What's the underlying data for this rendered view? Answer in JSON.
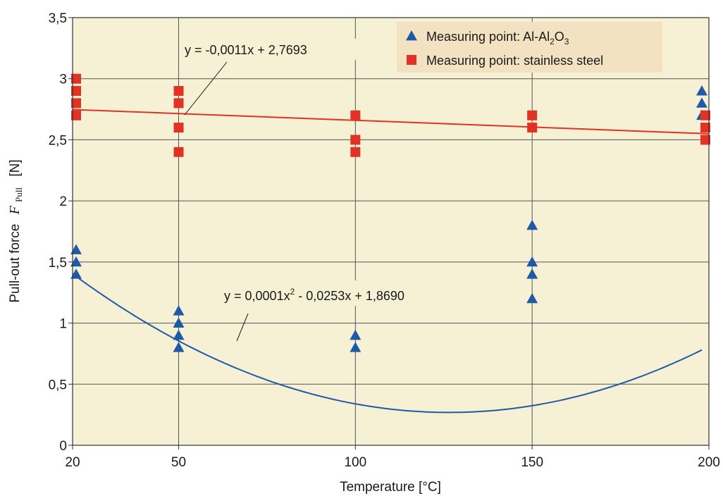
{
  "chart_data": {
    "type": "scatter",
    "title": "",
    "xlabel": "Temperature [°C]",
    "ylabel_text": "Pull-out force",
    "ylabel_symbol": "F",
    "ylabel_symbol_sub": "Pull",
    "ylabel_unit": "[N]",
    "xlim": [
      20,
      200
    ],
    "ylim": [
      0,
      3.5
    ],
    "grid": true,
    "legend_position": "top-right",
    "xticks": [
      20,
      50,
      100,
      150,
      200
    ],
    "yticks": [
      0,
      0.5,
      1,
      1.5,
      2,
      2.5,
      3,
      3.5
    ],
    "xtick_labels": [
      "20",
      "50",
      "100",
      "150",
      "200"
    ],
    "ytick_labels": [
      "0",
      "0,5",
      "1",
      "1,5",
      "2",
      "2,5",
      "3",
      "3,5"
    ],
    "colors": {
      "plot_background": "#f6f0d4",
      "grid": "#555555",
      "triangle_series": "#1f5aa6",
      "square_series": "#e03326",
      "legend_background": "#f2e2c2"
    },
    "series": [
      {
        "legend_prefix": "Measuring point: Al-Al",
        "legend_sub1": "2",
        "legend_mid": "O",
        "legend_sub2": "3",
        "marker": "triangle",
        "color": "#1f5aa6",
        "points": [
          [
            21,
            1.4
          ],
          [
            21,
            1.5
          ],
          [
            21,
            1.6
          ],
          [
            50,
            0.8
          ],
          [
            50,
            0.9
          ],
          [
            50,
            1.0
          ],
          [
            50,
            1.1
          ],
          [
            100,
            0.8
          ],
          [
            100,
            0.9
          ],
          [
            150,
            1.2
          ],
          [
            150,
            1.4
          ],
          [
            150,
            1.5
          ],
          [
            150,
            1.8
          ],
          [
            198,
            2.7
          ],
          [
            198,
            2.8
          ],
          [
            198,
            2.9
          ]
        ],
        "trendline": {
          "kind": "quadratic",
          "coefficients": [
            0.0001,
            -0.0253,
            1.869
          ],
          "label": "y = 0,0001x",
          "label_sup": "2",
          "label_rest": " - 0,0253x + 1,8690"
        }
      },
      {
        "legend_prefix": "Measuring point: stainless steel",
        "marker": "square",
        "color": "#e03326",
        "points": [
          [
            21,
            2.7
          ],
          [
            21,
            2.8
          ],
          [
            21,
            2.9
          ],
          [
            21,
            3.0
          ],
          [
            50,
            2.4
          ],
          [
            50,
            2.6
          ],
          [
            50,
            2.8
          ],
          [
            50,
            2.9
          ],
          [
            100,
            2.4
          ],
          [
            100,
            2.5
          ],
          [
            100,
            2.7
          ],
          [
            150,
            2.6
          ],
          [
            150,
            2.7
          ],
          [
            199,
            2.5
          ],
          [
            199,
            2.6
          ],
          [
            199,
            2.7
          ]
        ],
        "trendline": {
          "kind": "linear",
          "coefficients": [
            -0.0011,
            2.7693
          ],
          "label": "y = -0,0011x + 2,7693"
        }
      }
    ]
  }
}
